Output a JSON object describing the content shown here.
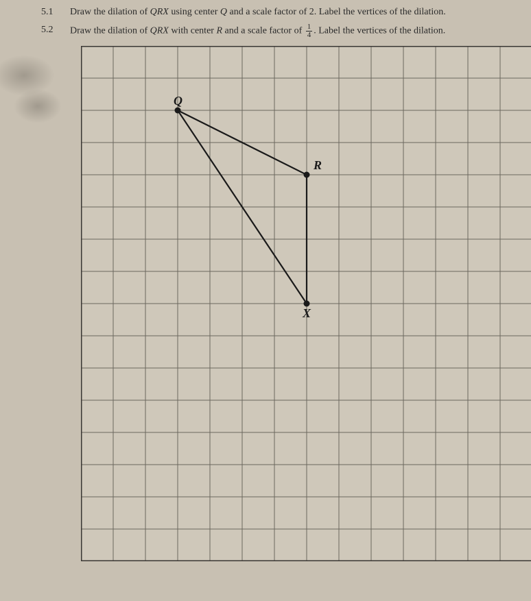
{
  "problems": [
    {
      "num": "5.1",
      "text_parts": [
        "Draw the dilation of ",
        "QRX",
        " using center ",
        "Q",
        " and a scale factor of ",
        "2",
        ". Label the vertices of the dilation."
      ]
    },
    {
      "num": "5.2",
      "text_parts": [
        "Draw the dilation of ",
        "QRX",
        " with center ",
        "R",
        " and a scale factor of "
      ],
      "fraction": {
        "num": "1",
        "den": "4"
      },
      "text_after": ". Label the vertices of the dilation."
    }
  ],
  "grid": {
    "cols": 14,
    "rows": 16,
    "cell": 47,
    "origin_x": 0,
    "origin_y": 0,
    "triangle": {
      "Q": {
        "col": 3,
        "row": 2,
        "label": "Q",
        "label_dx": -6,
        "label_dy": -8
      },
      "R": {
        "col": 7,
        "row": 4,
        "label": "R",
        "label_dx": 10,
        "label_dy": -8
      },
      "X": {
        "col": 7,
        "row": 8,
        "label": "X",
        "label_dx": -6,
        "label_dy": 20
      }
    },
    "colors": {
      "gridline": "#6b675e",
      "border": "#3a3734",
      "triangle": "#1a1a1a",
      "label": "#1a1a1a",
      "background": "#cfc8ba"
    }
  }
}
